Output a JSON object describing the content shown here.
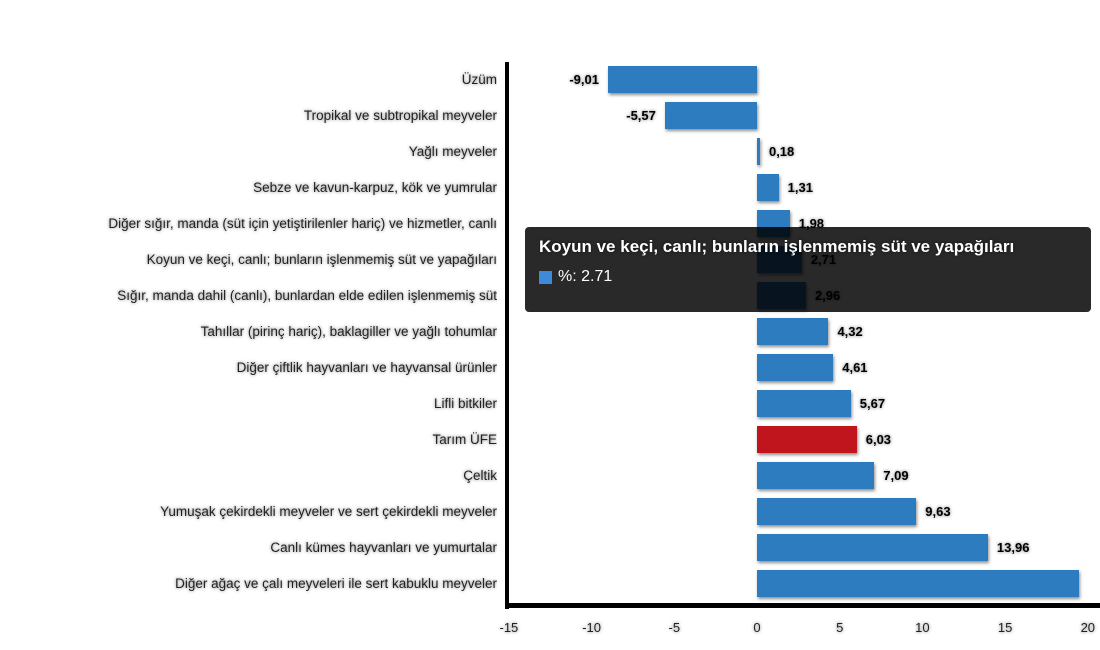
{
  "chart_data": {
    "type": "bar",
    "orientation": "horizontal",
    "title": "",
    "xlabel": "",
    "ylabel": "",
    "xlim": [
      -15,
      20
    ],
    "x_ticks": [
      -15,
      -10,
      -5,
      0,
      5,
      10,
      15,
      20
    ],
    "grid": false,
    "legend_position": "none",
    "series_name": "%",
    "categories": [
      "Üzüm",
      "Tropikal ve subtropikal meyveler",
      "Yağlı meyveler",
      "Sebze ve kavun-karpuz, kök ve yumrular",
      "Diğer sığır, manda (süt için yetiştirilenler hariç) ve hizmetler, canlı",
      "Koyun ve keçi, canlı; bunların işlenmemiş süt ve yapağıları",
      "Sığır, manda dahil (canlı), bunlardan elde edilen işlenmemiş süt",
      "Tahıllar (pirinç hariç), baklagiller ve yağlı tohumlar",
      "Diğer çiftlik hayvanları ve hayvansal ürünler",
      "Lifli bitkiler",
      "Tarım ÜFE",
      "Çeltik",
      "Yumuşak çekirdekli meyveler ve sert çekirdekli meyveler",
      "Canlı kümes hayvanları ve yumurtalar",
      "Diğer ağaç ve çalı meyveleri ile sert kabuklu meyveler"
    ],
    "values": [
      -9.01,
      -5.57,
      0.18,
      1.31,
      1.98,
      2.71,
      2.96,
      4.32,
      4.61,
      5.67,
      6.03,
      7.09,
      9.63,
      13.96,
      19.46
    ],
    "value_labels": [
      "-9,01",
      "-5,57",
      "0,18",
      "1,31",
      "1,98",
      "2,71",
      "2,96",
      "4,32",
      "4,61",
      "5,67",
      "6,03",
      "7,09",
      "9,63",
      "13,96",
      ""
    ],
    "highlight_category": "Tarım ÜFE",
    "colors": {
      "bar_default": "#2e7cc0",
      "bar_highlight": "#c0151c",
      "axis": "#000000",
      "text": "#222222"
    }
  },
  "axis": {
    "tick_labels": [
      "-15",
      "-10",
      "-5",
      "0",
      "5",
      "10",
      "15",
      "20"
    ]
  },
  "tooltip": {
    "title": "Koyun ve keçi, canlı; bunların işlenmemiş süt ve yapağıları",
    "value_line": "%: 2.71",
    "swatch_color": "#3d8ad8",
    "background": "#000000"
  }
}
